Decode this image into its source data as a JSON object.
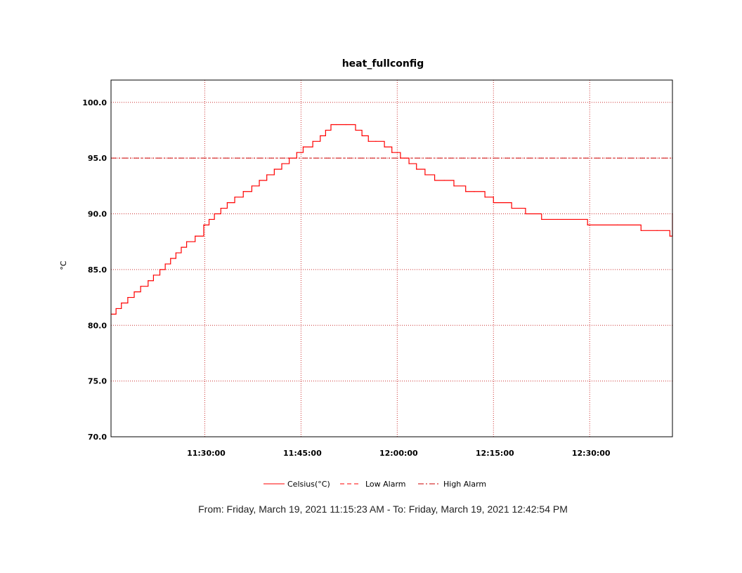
{
  "chart_data": {
    "type": "line",
    "title": "heat_fullconfig",
    "ylabel": "°C",
    "ylim": [
      70.0,
      102.0
    ],
    "yticks": [
      "70.0",
      "75.0",
      "80.0",
      "85.0",
      "90.0",
      "95.0",
      "100.0"
    ],
    "xlim": [
      "11:15:23",
      "12:42:54"
    ],
    "xticks": [
      "11:30:00",
      "11:45:00",
      "12:00:00",
      "12:15:00",
      "12:30:00"
    ],
    "grid": true,
    "series": [
      {
        "name": "Celsius(°C)",
        "style": "solid",
        "color": "#ff0000",
        "x": [
          "11:15:23",
          "11:16:10",
          "11:17:00",
          "11:18:00",
          "11:19:00",
          "11:20:00",
          "11:21:10",
          "11:22:00",
          "11:23:00",
          "11:23:50",
          "11:24:40",
          "11:25:30",
          "11:26:20",
          "11:27:10",
          "11:28:30",
          "11:29:50",
          "11:30:40",
          "11:31:30",
          "11:32:30",
          "11:33:30",
          "11:34:40",
          "11:36:00",
          "11:37:20",
          "11:38:30",
          "11:39:40",
          "11:40:50",
          "11:42:00",
          "11:43:10",
          "11:44:20",
          "11:45:20",
          "11:46:50",
          "11:48:00",
          "11:48:50",
          "11:49:40",
          "11:50:30",
          "11:52:00",
          "11:53:30",
          "11:54:30",
          "11:55:30",
          "11:56:40",
          "11:58:00",
          "11:59:10",
          "12:00:30",
          "12:01:50",
          "12:03:00",
          "12:04:20",
          "12:05:50",
          "12:07:20",
          "12:08:50",
          "12:10:40",
          "12:12:00",
          "12:13:40",
          "12:15:00",
          "12:17:50",
          "12:20:00",
          "12:22:30",
          "12:25:00",
          "12:29:40",
          "12:34:20",
          "12:38:00",
          "12:40:30",
          "12:42:30",
          "12:42:54"
        ],
        "values": [
          81.0,
          81.5,
          82.0,
          82.5,
          83.0,
          83.5,
          84.0,
          84.5,
          85.0,
          85.5,
          86.0,
          86.5,
          87.0,
          87.5,
          88.0,
          89.0,
          89.5,
          90.0,
          90.5,
          91.0,
          91.5,
          92.0,
          92.5,
          93.0,
          93.5,
          94.0,
          94.5,
          95.0,
          95.5,
          96.0,
          96.5,
          97.0,
          97.5,
          98.0,
          98.0,
          98.0,
          97.5,
          97.0,
          96.5,
          96.5,
          96.0,
          95.5,
          95.0,
          94.5,
          94.0,
          93.5,
          93.0,
          93.0,
          92.5,
          92.0,
          92.0,
          91.5,
          91.0,
          90.5,
          90.0,
          89.5,
          89.5,
          89.0,
          89.0,
          88.5,
          88.5,
          88.0,
          90.0
        ]
      },
      {
        "name": "Low Alarm",
        "style": "dashed",
        "color": "#ff0000",
        "value": 70.0
      },
      {
        "name": "High Alarm",
        "style": "dashdot",
        "color": "#cc0000",
        "value": 95.0
      }
    ],
    "legend": {
      "placement": "bottom",
      "items": [
        "Celsius(°C)",
        "Low Alarm",
        "High Alarm"
      ]
    }
  },
  "footer": {
    "date_range": "From: Friday, March 19, 2021 11:15:23 AM  -  To: Friday, March 19, 2021 12:42:54 PM"
  }
}
